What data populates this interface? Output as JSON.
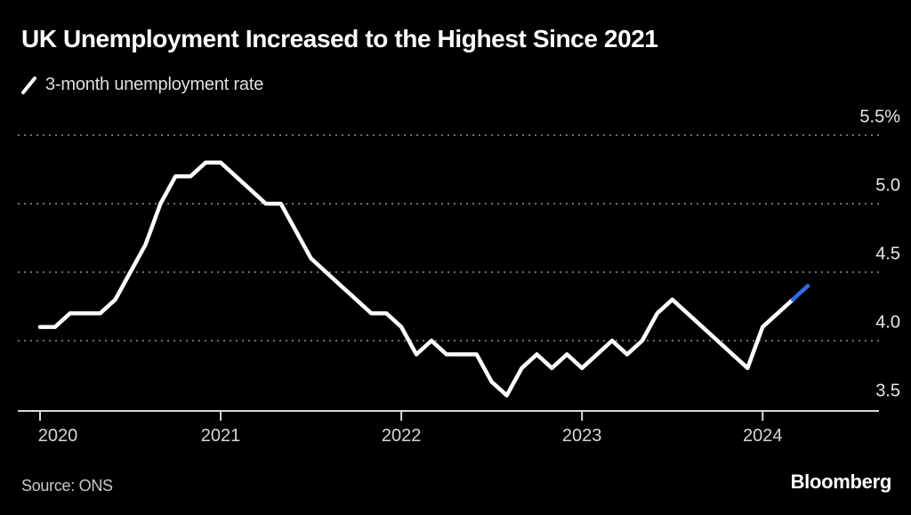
{
  "title": "UK Unemployment Increased to the Highest Since 2021",
  "legend": {
    "marker": "line-sample-slash",
    "label": "3-month unemployment rate"
  },
  "source": "Source: ONS",
  "brand": "Bloomberg",
  "colors": {
    "background": "#000000",
    "title_text": "#ffffff",
    "legend_text": "#dedede",
    "line": "#ffffff",
    "highlight_blue": "#2e6ee6",
    "grid_dotted": "#6e6e6e",
    "axis_line": "#d9d9d9",
    "x_label_text": "#d6d6d6",
    "y_label_text": "#e8e8e8",
    "source_text": "#c9c9c9"
  },
  "chart_data": {
    "type": "line",
    "title": "UK Unemployment Increased to the Highest Since 2021",
    "series_name": "3-month unemployment rate",
    "unit": "%",
    "ylim": [
      3.5,
      5.5
    ],
    "grid": "horizontal dotted gridlines, solid baseline at 3.5",
    "legend_position": "top-left",
    "y_ticks": [
      {
        "value": 5.5,
        "label": "5.5%"
      },
      {
        "value": 5.0,
        "label": "5.0"
      },
      {
        "value": 4.5,
        "label": "4.5"
      },
      {
        "value": 4.0,
        "label": "4.0"
      },
      {
        "value": 3.5,
        "label": "3.5"
      }
    ],
    "x_ticks": [
      {
        "index": 0,
        "label": "2020"
      },
      {
        "index": 12,
        "label": "2021"
      },
      {
        "index": 24,
        "label": "2022"
      },
      {
        "index": 36,
        "label": "2023"
      },
      {
        "index": 48,
        "label": "2024"
      }
    ],
    "highlight_last_segments": 1,
    "months": [
      "2020-01",
      "2020-02",
      "2020-03",
      "2020-04",
      "2020-05",
      "2020-06",
      "2020-07",
      "2020-08",
      "2020-09",
      "2020-10",
      "2020-11",
      "2020-12",
      "2021-01",
      "2021-02",
      "2021-03",
      "2021-04",
      "2021-05",
      "2021-06",
      "2021-07",
      "2021-08",
      "2021-09",
      "2021-10",
      "2021-11",
      "2021-12",
      "2022-01",
      "2022-02",
      "2022-03",
      "2022-04",
      "2022-05",
      "2022-06",
      "2022-07",
      "2022-08",
      "2022-09",
      "2022-10",
      "2022-11",
      "2022-12",
      "2023-01",
      "2023-02",
      "2023-03",
      "2023-04",
      "2023-05",
      "2023-06",
      "2023-07",
      "2023-08",
      "2023-09",
      "2023-10",
      "2023-11",
      "2023-12",
      "2024-01",
      "2024-02",
      "2024-03",
      "2024-04"
    ],
    "values": [
      4.1,
      4.1,
      4.2,
      4.2,
      4.2,
      4.3,
      4.5,
      4.7,
      5.0,
      5.2,
      5.2,
      5.3,
      5.3,
      5.2,
      5.1,
      5.0,
      5.0,
      4.8,
      4.6,
      4.5,
      4.4,
      4.3,
      4.2,
      4.2,
      4.1,
      3.9,
      4.0,
      3.9,
      3.9,
      3.9,
      3.7,
      3.6,
      3.8,
      3.9,
      3.8,
      3.9,
      3.8,
      3.9,
      4.0,
      3.9,
      4.0,
      4.2,
      4.3,
      4.2,
      4.1,
      4.0,
      3.9,
      3.8,
      4.1,
      4.2,
      4.3,
      4.4
    ]
  }
}
